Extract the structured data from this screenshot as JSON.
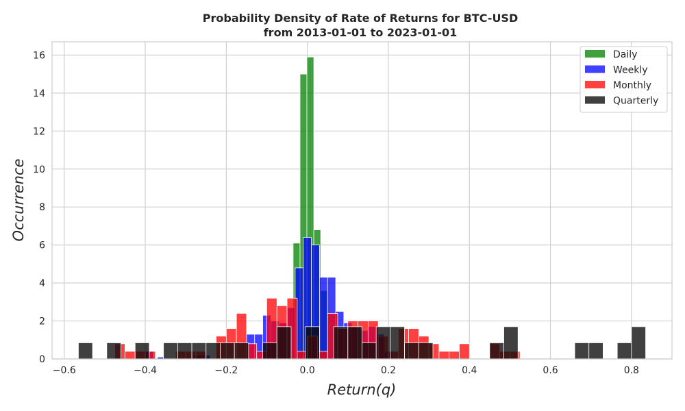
{
  "chart_data": {
    "type": "bar",
    "title_line1": "Probability Density of Rate of Returns for BTC-USD",
    "title_line2": "from 2013-01-01 to 2023-01-01",
    "xlabel": "Return(q)",
    "ylabel": "Occurrence",
    "xlim": [
      -0.63,
      0.9
    ],
    "ylim": [
      0,
      16.7
    ],
    "xticks": [
      -0.6,
      -0.4,
      -0.2,
      0.0,
      0.2,
      0.4,
      0.6,
      0.8
    ],
    "xtick_labels": [
      "−0.6",
      "−0.4",
      "−0.2",
      "0.0",
      "0.2",
      "0.4",
      "0.6",
      "0.8"
    ],
    "yticks": [
      0,
      2,
      4,
      6,
      8,
      10,
      12,
      14,
      16
    ],
    "ytick_labels": [
      "0",
      "2",
      "4",
      "6",
      "8",
      "10",
      "12",
      "14",
      "16"
    ],
    "grid": true,
    "legend_position": "top-right",
    "series": [
      {
        "name": "Daily",
        "color": "#008000",
        "opacity": 0.75,
        "bins": [
          {
            "x0": -0.035,
            "x1": -0.018,
            "y": 6.1
          },
          {
            "x0": -0.018,
            "x1": -0.001,
            "y": 15.0
          },
          {
            "x0": -0.001,
            "x1": 0.016,
            "y": 15.9
          },
          {
            "x0": 0.016,
            "x1": 0.033,
            "y": 6.8
          },
          {
            "x0": 0.033,
            "x1": 0.05,
            "y": 3.6
          }
        ]
      },
      {
        "name": "Weekly",
        "color": "#0000ff",
        "opacity": 0.75,
        "bins": [
          {
            "x0": -0.4,
            "x1": -0.38,
            "y": 0.4
          },
          {
            "x0": -0.37,
            "x1": -0.355,
            "y": 0.1
          },
          {
            "x0": -0.28,
            "x1": -0.26,
            "y": 0.2
          },
          {
            "x0": -0.26,
            "x1": -0.24,
            "y": 0.2
          },
          {
            "x0": -0.15,
            "x1": -0.13,
            "y": 1.3
          },
          {
            "x0": -0.13,
            "x1": -0.11,
            "y": 1.3
          },
          {
            "x0": -0.11,
            "x1": -0.09,
            "y": 2.3
          },
          {
            "x0": -0.09,
            "x1": -0.07,
            "y": 2.0
          },
          {
            "x0": -0.07,
            "x1": -0.05,
            "y": 1.9
          },
          {
            "x0": -0.05,
            "x1": -0.03,
            "y": 2.7
          },
          {
            "x0": -0.03,
            "x1": -0.01,
            "y": 4.8
          },
          {
            "x0": -0.01,
            "x1": 0.01,
            "y": 6.4
          },
          {
            "x0": 0.01,
            "x1": 0.03,
            "y": 6.0
          },
          {
            "x0": 0.03,
            "x1": 0.05,
            "y": 4.3
          },
          {
            "x0": 0.05,
            "x1": 0.07,
            "y": 4.3
          },
          {
            "x0": 0.07,
            "x1": 0.09,
            "y": 2.5
          },
          {
            "x0": 0.09,
            "x1": 0.11,
            "y": 1.9
          },
          {
            "x0": 0.11,
            "x1": 0.13,
            "y": 1.7
          },
          {
            "x0": 0.13,
            "x1": 0.15,
            "y": 1.5
          },
          {
            "x0": 0.15,
            "x1": 0.17,
            "y": 1.7
          },
          {
            "x0": 0.17,
            "x1": 0.19,
            "y": 1.3
          },
          {
            "x0": 0.19,
            "x1": 0.21,
            "y": 0.4
          }
        ]
      },
      {
        "name": "Monthly",
        "color": "#ff0000",
        "opacity": 0.75,
        "bins": [
          {
            "x0": -0.475,
            "x1": -0.45,
            "y": 0.8
          },
          {
            "x0": -0.45,
            "x1": -0.425,
            "y": 0.4
          },
          {
            "x0": -0.425,
            "x1": -0.4,
            "y": 0.4
          },
          {
            "x0": -0.4,
            "x1": -0.375,
            "y": 0.4
          },
          {
            "x0": -0.325,
            "x1": -0.3,
            "y": 0.4
          },
          {
            "x0": -0.3,
            "x1": -0.275,
            "y": 0.4
          },
          {
            "x0": -0.275,
            "x1": -0.25,
            "y": 0.4
          },
          {
            "x0": -0.225,
            "x1": -0.2,
            "y": 1.2
          },
          {
            "x0": -0.2,
            "x1": -0.175,
            "y": 1.6
          },
          {
            "x0": -0.175,
            "x1": -0.15,
            "y": 2.4
          },
          {
            "x0": -0.15,
            "x1": -0.125,
            "y": 0.8
          },
          {
            "x0": -0.125,
            "x1": -0.1,
            "y": 0.4
          },
          {
            "x0": -0.1,
            "x1": -0.075,
            "y": 3.2
          },
          {
            "x0": -0.075,
            "x1": -0.05,
            "y": 2.8
          },
          {
            "x0": -0.05,
            "x1": -0.025,
            "y": 3.2
          },
          {
            "x0": -0.025,
            "x1": 0.0,
            "y": 0.4
          },
          {
            "x0": 0.0,
            "x1": 0.025,
            "y": 1.2
          },
          {
            "x0": 0.025,
            "x1": 0.05,
            "y": 0.4
          },
          {
            "x0": 0.05,
            "x1": 0.075,
            "y": 2.4
          },
          {
            "x0": 0.075,
            "x1": 0.1,
            "y": 1.6
          },
          {
            "x0": 0.1,
            "x1": 0.125,
            "y": 2.0
          },
          {
            "x0": 0.125,
            "x1": 0.15,
            "y": 2.0
          },
          {
            "x0": 0.15,
            "x1": 0.175,
            "y": 2.0
          },
          {
            "x0": 0.175,
            "x1": 0.2,
            "y": 1.2
          },
          {
            "x0": 0.2,
            "x1": 0.225,
            "y": 0.4
          },
          {
            "x0": 0.225,
            "x1": 0.25,
            "y": 1.6
          },
          {
            "x0": 0.25,
            "x1": 0.275,
            "y": 1.6
          },
          {
            "x0": 0.275,
            "x1": 0.3,
            "y": 1.2
          },
          {
            "x0": 0.3,
            "x1": 0.325,
            "y": 0.8
          },
          {
            "x0": 0.325,
            "x1": 0.35,
            "y": 0.4
          },
          {
            "x0": 0.35,
            "x1": 0.375,
            "y": 0.4
          },
          {
            "x0": 0.375,
            "x1": 0.4,
            "y": 0.8
          },
          {
            "x0": 0.45,
            "x1": 0.475,
            "y": 0.8
          },
          {
            "x0": 0.475,
            "x1": 0.5,
            "y": 0.4
          },
          {
            "x0": 0.5,
            "x1": 0.525,
            "y": 0.4
          }
        ]
      },
      {
        "name": "Quarterly",
        "color": "#0a0a0a",
        "opacity": 0.78,
        "bins": [
          {
            "x0": -0.565,
            "x1": -0.53,
            "y": 0.85
          },
          {
            "x0": -0.495,
            "x1": -0.46,
            "y": 0.85
          },
          {
            "x0": -0.425,
            "x1": -0.39,
            "y": 0.85
          },
          {
            "x0": -0.355,
            "x1": -0.32,
            "y": 0.85
          },
          {
            "x0": -0.32,
            "x1": -0.285,
            "y": 0.85
          },
          {
            "x0": -0.285,
            "x1": -0.25,
            "y": 0.85
          },
          {
            "x0": -0.25,
            "x1": -0.215,
            "y": 0.85
          },
          {
            "x0": -0.215,
            "x1": -0.18,
            "y": 0.85
          },
          {
            "x0": -0.18,
            "x1": -0.145,
            "y": 0.85
          },
          {
            "x0": -0.11,
            "x1": -0.075,
            "y": 0.85
          },
          {
            "x0": -0.075,
            "x1": -0.04,
            "y": 1.7
          },
          {
            "x0": -0.005,
            "x1": 0.03,
            "y": 1.7
          },
          {
            "x0": 0.065,
            "x1": 0.1,
            "y": 1.7
          },
          {
            "x0": 0.1,
            "x1": 0.135,
            "y": 1.7
          },
          {
            "x0": 0.135,
            "x1": 0.17,
            "y": 0.85
          },
          {
            "x0": 0.17,
            "x1": 0.205,
            "y": 1.7
          },
          {
            "x0": 0.205,
            "x1": 0.24,
            "y": 1.7
          },
          {
            "x0": 0.24,
            "x1": 0.275,
            "y": 0.85
          },
          {
            "x0": 0.275,
            "x1": 0.31,
            "y": 0.85
          },
          {
            "x0": 0.45,
            "x1": 0.485,
            "y": 0.85
          },
          {
            "x0": 0.485,
            "x1": 0.52,
            "y": 1.7
          },
          {
            "x0": 0.66,
            "x1": 0.695,
            "y": 0.85
          },
          {
            "x0": 0.695,
            "x1": 0.73,
            "y": 0.85
          },
          {
            "x0": 0.765,
            "x1": 0.8,
            "y": 0.85
          },
          {
            "x0": 0.8,
            "x1": 0.835,
            "y": 1.7
          }
        ]
      }
    ]
  }
}
